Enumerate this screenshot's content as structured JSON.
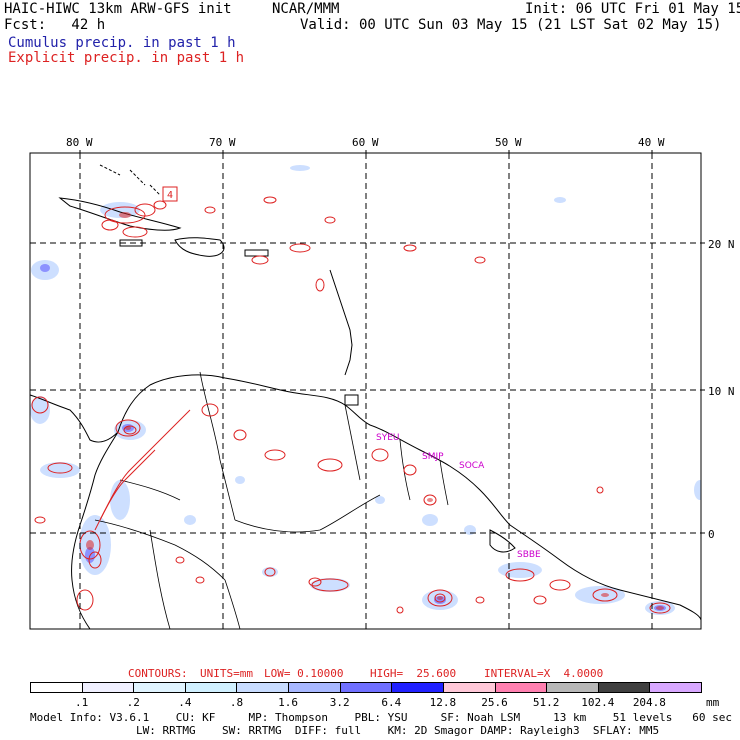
{
  "header": {
    "model_title": "HAIC-HIWC 13km ARW-GFS init",
    "org": "NCAR/MMM",
    "init": "Init: 06 UTC Fri 01 May 15",
    "fcst": "Fcst:   42 h",
    "valid": "Valid: 00 UTC Sun 03 May 15 (21 LST Sat 02 May 15)",
    "legend_cumulus": "Cumulus precip. in past 1 h",
    "legend_explicit": "Explicit precip. in past 1 h"
  },
  "map": {
    "lon_labels": [
      "80 W",
      "70 W",
      "60 W",
      "50 W",
      "40 W"
    ],
    "lat_labels": [
      "20 N",
      "10 N",
      "0"
    ],
    "box_label": "4",
    "stations": [
      "SYEU",
      "SMJP",
      "SOCA",
      "SBBE"
    ]
  },
  "contour_info": {
    "contours": "CONTOURS:",
    "units": "UNITS=mm",
    "low": "LOW= 0.10000",
    "high": "HIGH=  25.600",
    "interval": "INTERVAL=X  4.0000"
  },
  "colorbar": {
    "labels": [
      ".1",
      ".2",
      ".4",
      ".8",
      "1.6",
      "3.2",
      "6.4",
      "12.8",
      "25.6",
      "51.2",
      "102.4",
      "204.8"
    ],
    "unit": "mm",
    "colors": [
      "#ffffff",
      "#f0f0ff",
      "#e0f4ff",
      "#d0f0ff",
      "#c8dcff",
      "#a8b8ff",
      "#7070ff",
      "#2020ff",
      "#ffc8d8",
      "#ff80b0",
      "#b8b8b8",
      "#404040",
      "#d8a8ff"
    ]
  },
  "footer": {
    "line1": "Model Info: V3.6.1    CU: KF     MP: Thompson    PBL: YSU     SF: Noah LSM     13 km    51 levels   60 sec",
    "line2": "                LW: RRTMG    SW: RRTMG  DIFF: full    KM: 2D Smagor DAMP: Rayleigh3  SFLAY: MM5"
  }
}
